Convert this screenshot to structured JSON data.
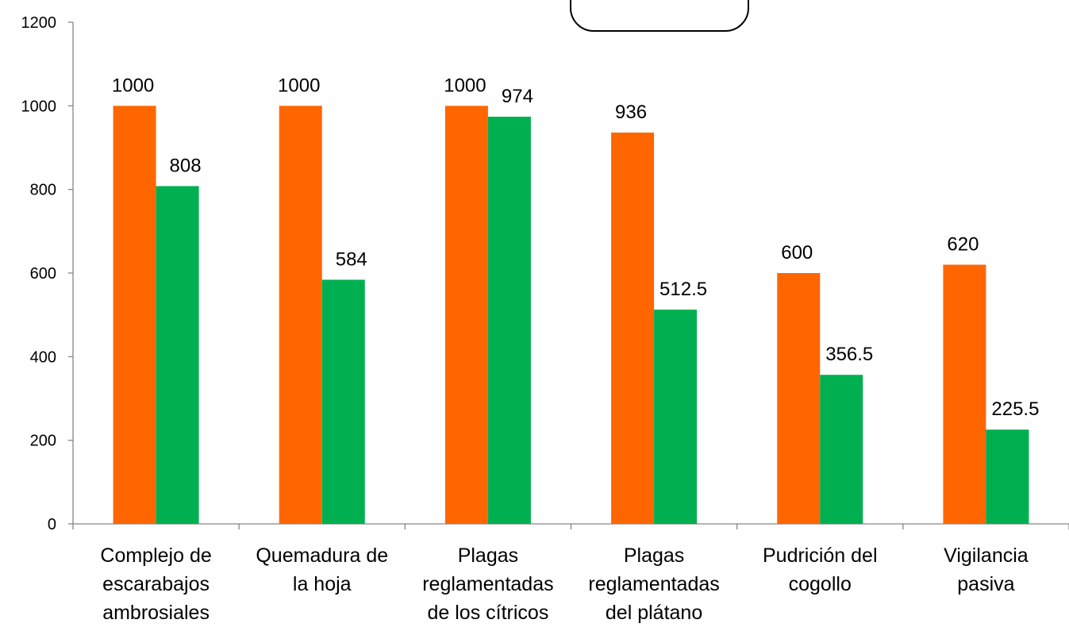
{
  "chart_data": {
    "type": "bar",
    "title": "",
    "xlabel": "",
    "ylabel": "",
    "ylim": [
      0,
      1200
    ],
    "yticks": [
      0,
      200,
      400,
      600,
      800,
      1000,
      1200
    ],
    "grid": false,
    "legend": "top-center",
    "categories": [
      [
        "Complejo de",
        "escarabajos",
        "ambrosiales"
      ],
      [
        "Quemadura de",
        "la hoja"
      ],
      [
        "Plagas",
        "reglamentadas",
        "de los cítricos"
      ],
      [
        "Plagas",
        "reglamentadas",
        "del plátano"
      ],
      [
        "Pudrición del",
        "cogollo"
      ],
      [
        "Vigilancia",
        "pasiva"
      ]
    ],
    "series": [
      {
        "color": "#ff6600",
        "values": [
          1000,
          1000,
          1000,
          936,
          600,
          620
        ]
      },
      {
        "color": "#00b050",
        "values": [
          808,
          584,
          974,
          512.5,
          356.5,
          225.5
        ]
      }
    ],
    "data_labels": [
      [
        "1000",
        "1000",
        "1000",
        "936",
        "600",
        "620"
      ],
      [
        "808",
        "584",
        "974",
        "512.5",
        "356.5",
        "225.5"
      ]
    ]
  }
}
